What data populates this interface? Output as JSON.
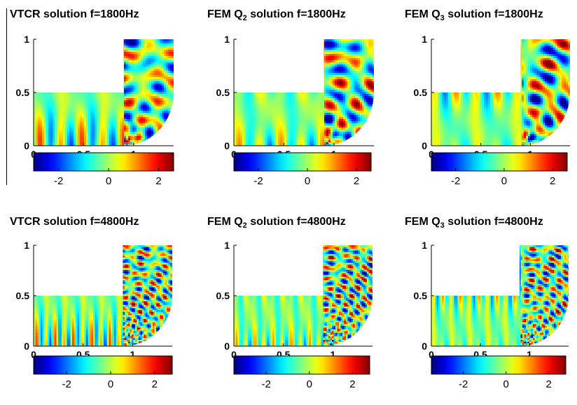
{
  "chart_data": [
    {
      "type": "heatmap",
      "title_main": "VTCR solution f=1800Hz",
      "title_prefix": "",
      "title_sub": "",
      "title_suffix": "",
      "x_ticks": [
        0,
        0.5,
        1
      ],
      "y_ticks": [
        0,
        0.5,
        1
      ],
      "xlim": [
        0,
        1.4
      ],
      "ylim": [
        0,
        1
      ],
      "colorbar": {
        "ticks": [
          -2,
          0,
          2
        ],
        "range": [
          -3,
          2.6
        ],
        "colormap": "jet"
      },
      "frequency_hz": 1800
    },
    {
      "type": "heatmap",
      "title_main": "",
      "title_prefix": "FEM Q",
      "title_sub": "2",
      "title_suffix": " solution f=1800Hz",
      "x_ticks": [
        0,
        0.5,
        1
      ],
      "y_ticks": [
        0,
        0.5,
        1
      ],
      "xlim": [
        0,
        1.4
      ],
      "ylim": [
        0,
        1
      ],
      "colorbar": {
        "ticks": [
          -2,
          0,
          2
        ],
        "range": [
          -3,
          2.6
        ],
        "colormap": "jet"
      },
      "frequency_hz": 1800
    },
    {
      "type": "heatmap",
      "title_main": "",
      "title_prefix": "FEM Q",
      "title_sub": "3",
      "title_suffix": " solution f=1800Hz",
      "x_ticks": [
        0,
        0.5,
        1
      ],
      "y_ticks": [
        0,
        0.5,
        1
      ],
      "xlim": [
        0,
        1.4
      ],
      "ylim": [
        0,
        1
      ],
      "colorbar": {
        "ticks": [
          -2,
          0,
          2
        ],
        "range": [
          -3,
          2.6
        ],
        "colormap": "jet"
      },
      "frequency_hz": 1800
    },
    {
      "type": "heatmap",
      "title_main": "VTCR solution f=4800Hz",
      "title_prefix": "",
      "title_sub": "",
      "title_suffix": "",
      "x_ticks": [
        0,
        0.5,
        1
      ],
      "y_ticks": [
        0,
        0.5,
        1
      ],
      "xlim": [
        0,
        1.4
      ],
      "ylim": [
        0,
        1
      ],
      "colorbar": {
        "ticks": [
          -2,
          0,
          2
        ],
        "range": [
          -3.5,
          2.8
        ],
        "colormap": "jet"
      },
      "frequency_hz": 4800
    },
    {
      "type": "heatmap",
      "title_main": "",
      "title_prefix": "FEM Q",
      "title_sub": "2",
      "title_suffix": " solution f=4800Hz",
      "x_ticks": [
        0,
        0.5,
        1
      ],
      "y_ticks": [
        0,
        0.5,
        1
      ],
      "xlim": [
        0,
        1.4
      ],
      "ylim": [
        0,
        1
      ],
      "colorbar": {
        "ticks": [
          -2,
          0,
          2
        ],
        "range": [
          -3.5,
          2.8
        ],
        "colormap": "jet"
      },
      "frequency_hz": 4800
    },
    {
      "type": "heatmap",
      "title_main": "",
      "title_prefix": "FEM Q",
      "title_sub": "3",
      "title_suffix": " solution f=4800Hz",
      "x_ticks": [
        0,
        0.5,
        1
      ],
      "y_ticks": [
        0,
        0.5,
        1
      ],
      "xlim": [
        0,
        1.4
      ],
      "ylim": [
        0,
        1
      ],
      "colorbar": {
        "ticks": [
          -2,
          0,
          2
        ],
        "range": [
          -3.5,
          2.8
        ],
        "colormap": "jet"
      },
      "frequency_hz": 4800
    }
  ]
}
